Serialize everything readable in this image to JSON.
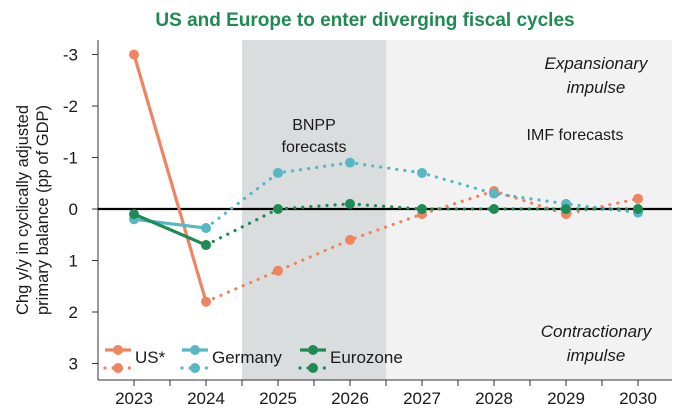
{
  "chart_data": {
    "type": "line",
    "title": "US and Europe to enter diverging fiscal cycles",
    "ylabel": "Chg y/y in cyclically adjusted primary balance (pp of GDP)",
    "ylabel_lines": [
      "Chg y/y in cyclically adjusted",
      "primary balance (pp of GDP)"
    ],
    "xlabel": "",
    "y_inverted": true,
    "ylim": [
      -3.2,
      3.1
    ],
    "y_ticks": [
      -3,
      -2,
      -1,
      0,
      1,
      2,
      3
    ],
    "y_tick_labels": [
      "-3",
      "-2",
      "-1",
      "0",
      "1",
      "2",
      "3"
    ],
    "categories": [
      "2023",
      "2024",
      "2025",
      "2026",
      "2027",
      "2028",
      "2029",
      "2030"
    ],
    "series": [
      {
        "name": "US*",
        "color": "#ee8462",
        "actual": [
          [
            2023,
            -3.0
          ],
          [
            2024,
            1.8
          ]
        ],
        "forecast": [
          [
            2024,
            1.8
          ],
          [
            2025,
            1.2
          ],
          [
            2026,
            0.6
          ],
          [
            2027,
            0.1
          ],
          [
            2028,
            -0.35
          ],
          [
            2029,
            0.1
          ],
          [
            2030,
            -0.2
          ]
        ]
      },
      {
        "name": "Germany",
        "color": "#57b7c5",
        "actual": [
          [
            2023,
            0.2
          ],
          [
            2024,
            0.37
          ]
        ],
        "forecast": [
          [
            2024,
            0.37
          ],
          [
            2025,
            -0.7
          ],
          [
            2026,
            -0.9
          ],
          [
            2027,
            -0.7
          ],
          [
            2028,
            -0.3
          ],
          [
            2029,
            -0.1
          ],
          [
            2030,
            0.07
          ]
        ]
      },
      {
        "name": "Eurozone",
        "color": "#1f8a54",
        "actual": [
          [
            2023,
            0.1
          ],
          [
            2024,
            0.7
          ]
        ],
        "forecast": [
          [
            2024,
            0.7
          ],
          [
            2025,
            0.0
          ],
          [
            2026,
            -0.1
          ],
          [
            2027,
            0.0
          ],
          [
            2028,
            0.0
          ],
          [
            2029,
            0.0
          ],
          [
            2030,
            0.0
          ]
        ]
      }
    ],
    "shaded_regions": [
      {
        "label": "BNPP forecasts",
        "label_lines": [
          "BNPP",
          "forecasts"
        ],
        "from": 2024.5,
        "to": 2026.5,
        "color": "#dadddd"
      },
      {
        "label": "IMF forecasts",
        "label_lines": [
          "IMF forecasts"
        ],
        "from": 2026.5,
        "to": 2030.5,
        "color": "#f2f2f2"
      }
    ],
    "annotations": {
      "expansionary": [
        "Expansionary",
        "impulse"
      ],
      "contractionary": [
        "Contractionary",
        "impulse"
      ]
    },
    "legend_position": "bottom-left",
    "title_color": "#1f8a54"
  }
}
